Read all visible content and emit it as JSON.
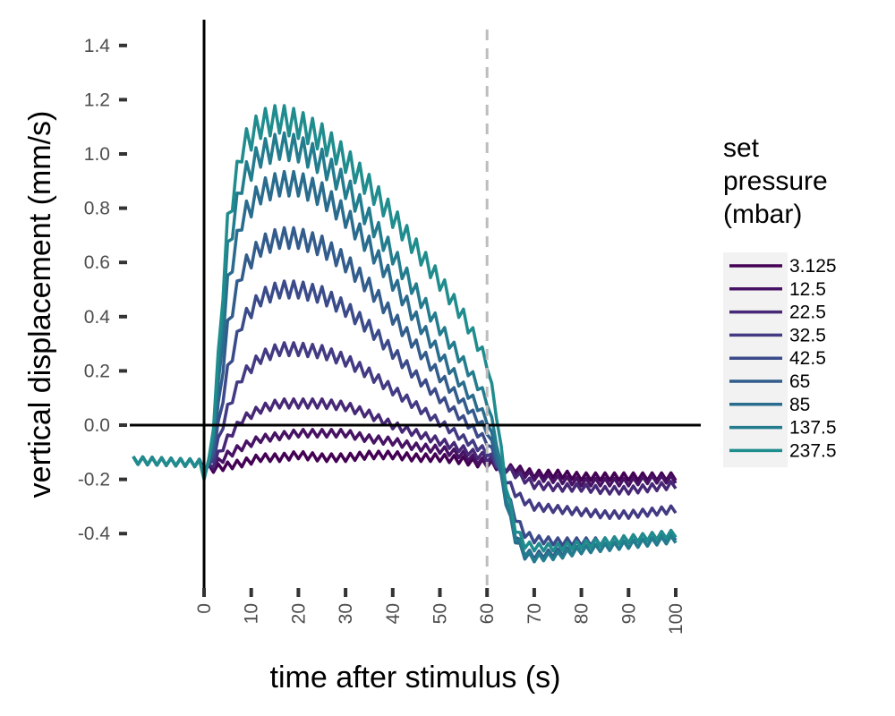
{
  "chart_data": {
    "type": "line",
    "xlabel": "time after stimulus (s)",
    "ylabel": "vertical displacement (mm/s)",
    "xlim": [
      -16,
      105
    ],
    "ylim": [
      -0.6,
      1.5
    ],
    "xticks": [
      "0",
      "10",
      "20",
      "30",
      "40",
      "50",
      "60",
      "70",
      "80",
      "90",
      "100"
    ],
    "yticks": [
      "1.4",
      "1.2",
      "1.0",
      "0.8",
      "0.6",
      "0.4",
      "0.2",
      "0.0",
      "-0.2",
      "-0.4"
    ],
    "reference_lines": {
      "horizontal_y": 0,
      "vertical_x": 0,
      "dashed_vertical_x": 60
    },
    "grid": false,
    "legend_position": "right",
    "legend_title": "set\npressure\n(mbar)",
    "series_key_points": [
      -15,
      -1,
      0.5,
      2,
      5,
      8,
      12,
      16,
      20,
      25,
      30,
      35,
      40,
      45,
      50,
      55,
      58,
      60,
      62,
      64,
      66,
      68,
      70,
      75,
      80,
      85,
      90,
      95,
      100
    ],
    "series": [
      {
        "name": "3.125",
        "color": "#440154",
        "values": [
          -0.13,
          -0.14,
          -0.16,
          -0.16,
          -0.15,
          -0.14,
          -0.12,
          -0.12,
          -0.11,
          -0.12,
          -0.12,
          -0.11,
          -0.11,
          -0.12,
          -0.12,
          -0.13,
          -0.14,
          -0.14,
          -0.15,
          -0.16,
          -0.16,
          -0.17,
          -0.18,
          -0.18,
          -0.19,
          -0.19,
          -0.19,
          -0.19,
          -0.19
        ]
      },
      {
        "name": "12.5",
        "color": "#471264",
        "values": [
          -0.13,
          -0.14,
          -0.16,
          -0.15,
          -0.11,
          -0.08,
          -0.05,
          -0.04,
          -0.03,
          -0.03,
          -0.03,
          -0.05,
          -0.06,
          -0.08,
          -0.09,
          -0.11,
          -0.13,
          -0.14,
          -0.15,
          -0.16,
          -0.17,
          -0.18,
          -0.19,
          -0.2,
          -0.21,
          -0.21,
          -0.21,
          -0.2,
          -0.2
        ]
      },
      {
        "name": "22.5",
        "color": "#472877",
        "values": [
          -0.13,
          -0.14,
          -0.17,
          -0.14,
          -0.05,
          0.02,
          0.06,
          0.08,
          0.08,
          0.08,
          0.07,
          0.04,
          0.0,
          -0.03,
          -0.06,
          -0.09,
          -0.11,
          -0.12,
          -0.14,
          -0.16,
          -0.18,
          -0.2,
          -0.22,
          -0.23,
          -0.23,
          -0.24,
          -0.24,
          -0.23,
          -0.22
        ]
      },
      {
        "name": "32.5",
        "color": "#423a83",
        "values": [
          -0.13,
          -0.14,
          -0.17,
          -0.12,
          0.06,
          0.18,
          0.25,
          0.28,
          0.28,
          0.27,
          0.24,
          0.19,
          0.13,
          0.07,
          0.01,
          -0.05,
          -0.08,
          -0.1,
          -0.14,
          -0.2,
          -0.25,
          -0.28,
          -0.3,
          -0.31,
          -0.32,
          -0.33,
          -0.33,
          -0.32,
          -0.31
        ]
      },
      {
        "name": "42.5",
        "color": "#3b4b8a",
        "values": [
          -0.13,
          -0.14,
          -0.18,
          -0.1,
          0.2,
          0.38,
          0.47,
          0.5,
          0.5,
          0.48,
          0.43,
          0.36,
          0.27,
          0.18,
          0.1,
          0.02,
          -0.03,
          -0.06,
          -0.13,
          -0.24,
          -0.34,
          -0.4,
          -0.42,
          -0.43,
          -0.43,
          -0.43,
          -0.42,
          -0.41,
          -0.4
        ]
      },
      {
        "name": "65",
        "color": "#325c8c",
        "values": [
          -0.13,
          -0.14,
          -0.19,
          -0.08,
          0.36,
          0.57,
          0.66,
          0.69,
          0.69,
          0.66,
          0.6,
          0.51,
          0.4,
          0.29,
          0.18,
          0.08,
          0.02,
          -0.02,
          -0.12,
          -0.27,
          -0.4,
          -0.47,
          -0.48,
          -0.47,
          -0.46,
          -0.45,
          -0.44,
          -0.43,
          -0.41
        ]
      },
      {
        "name": "85",
        "color": "#2a6c8e",
        "values": [
          -0.13,
          -0.14,
          -0.19,
          -0.05,
          0.52,
          0.76,
          0.86,
          0.89,
          0.89,
          0.85,
          0.77,
          0.66,
          0.53,
          0.39,
          0.26,
          0.14,
          0.07,
          0.02,
          -0.1,
          -0.28,
          -0.42,
          -0.48,
          -0.49,
          -0.48,
          -0.46,
          -0.45,
          -0.44,
          -0.43,
          -0.42
        ]
      },
      {
        "name": "137.5",
        "color": "#237c8e",
        "values": [
          -0.13,
          -0.14,
          -0.2,
          -0.02,
          0.64,
          0.9,
          1.0,
          1.03,
          1.02,
          0.97,
          0.88,
          0.76,
          0.63,
          0.49,
          0.36,
          0.23,
          0.15,
          0.09,
          -0.06,
          -0.26,
          -0.41,
          -0.47,
          -0.49,
          -0.48,
          -0.46,
          -0.45,
          -0.44,
          -0.43,
          -0.42
        ]
      },
      {
        "name": "237.5",
        "color": "#1f8c8d",
        "values": [
          -0.13,
          -0.14,
          -0.21,
          0.0,
          0.74,
          1.02,
          1.11,
          1.13,
          1.11,
          1.06,
          0.98,
          0.88,
          0.77,
          0.65,
          0.53,
          0.4,
          0.3,
          0.23,
          0.04,
          -0.22,
          -0.38,
          -0.44,
          -0.45,
          -0.45,
          -0.44,
          -0.43,
          -0.42,
          -0.41,
          -0.4
        ]
      }
    ]
  }
}
